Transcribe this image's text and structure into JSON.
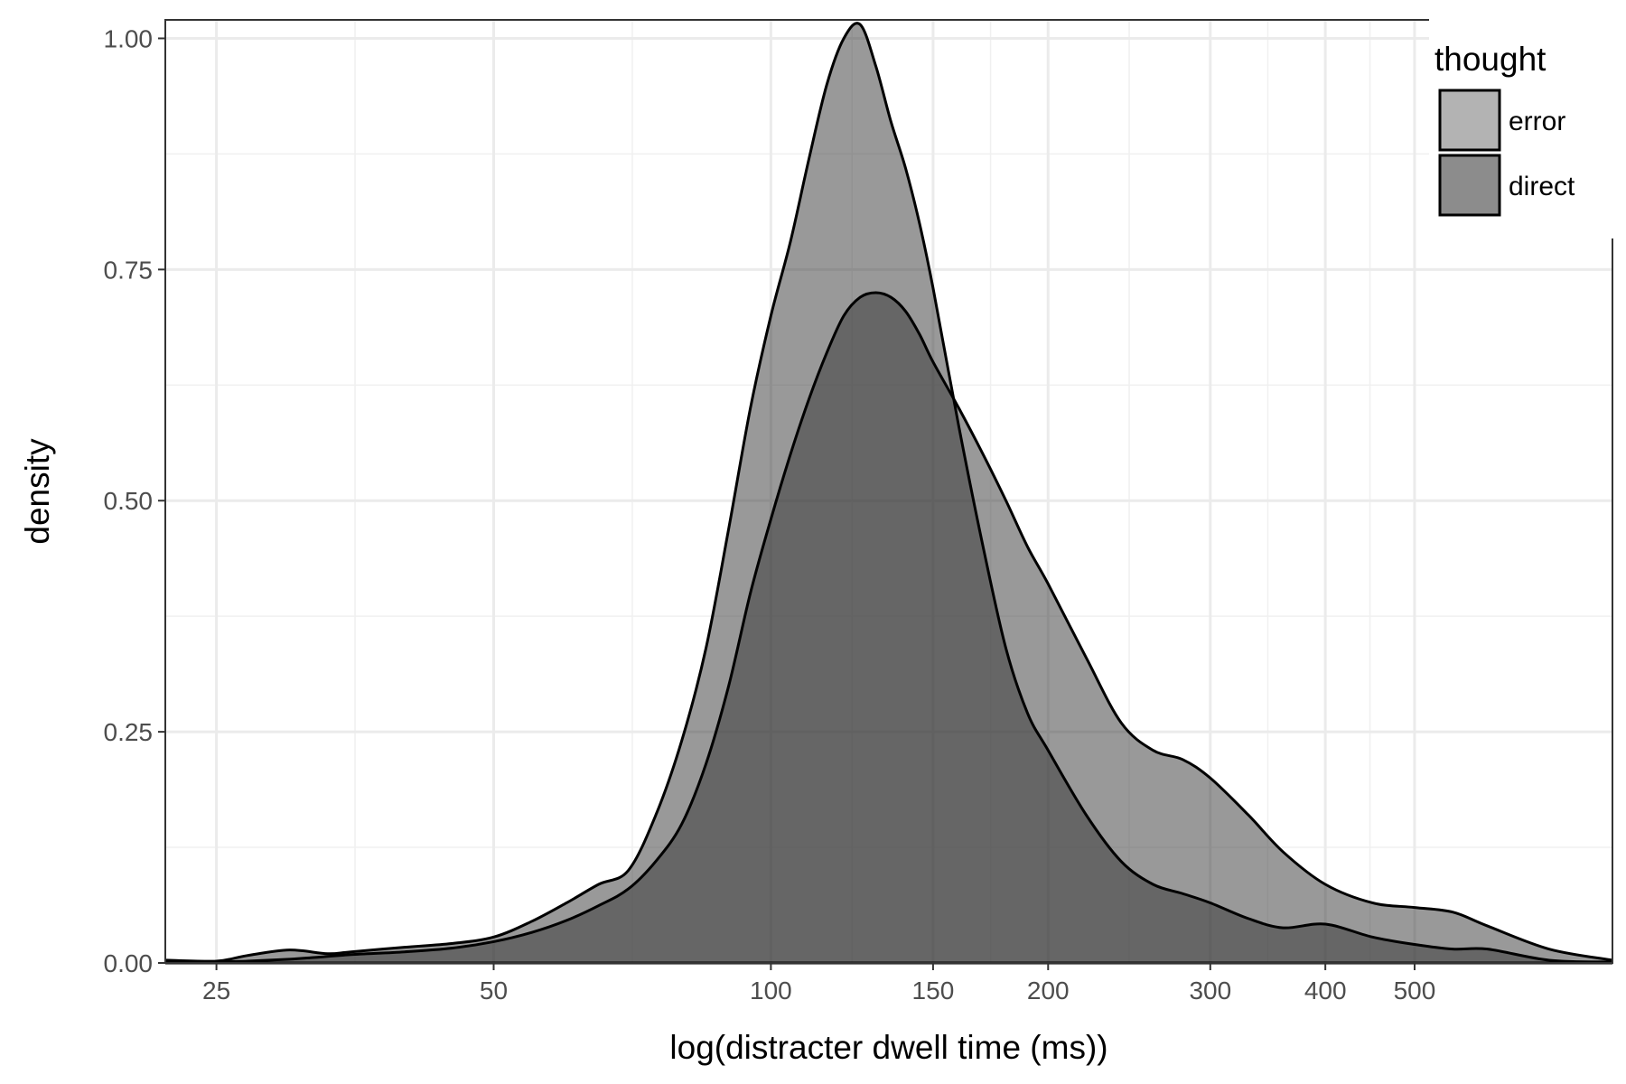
{
  "chart_data": {
    "type": "area",
    "xlabel": "log(distracter dwell time (ms))",
    "ylabel": "density",
    "x_scale": "log",
    "xlim": [
      22,
      820
    ],
    "ylim": [
      0,
      1.02
    ],
    "x_ticks": [
      25,
      50,
      100,
      150,
      200,
      300,
      400,
      500
    ],
    "x_tick_labels": [
      "25",
      "50",
      "100",
      "150",
      "200",
      "300",
      "400",
      "500"
    ],
    "y_ticks": [
      0,
      0.25,
      0.5,
      0.75,
      1.0
    ],
    "y_tick_labels": [
      "0.00",
      "0.25",
      "0.50",
      "0.75",
      "1.00"
    ],
    "grid": true,
    "legend": {
      "title": "thought",
      "position": "top-right"
    },
    "series": [
      {
        "name": "error",
        "color": "#b3b3b3",
        "x": [
          22,
          25,
          27,
          30,
          32,
          35,
          40,
          45,
          50,
          55,
          60,
          65,
          70,
          75,
          80,
          85,
          90,
          95,
          100,
          105,
          110,
          115,
          120,
          125,
          130,
          135,
          140,
          145,
          150,
          160,
          170,
          180,
          190,
          200,
          220,
          240,
          260,
          280,
          300,
          330,
          360,
          400,
          450,
          500,
          550,
          600,
          700,
          820
        ],
        "y": [
          0.001,
          0.001,
          0.002,
          0.004,
          0.006,
          0.009,
          0.012,
          0.016,
          0.023,
          0.033,
          0.046,
          0.062,
          0.08,
          0.11,
          0.15,
          0.215,
          0.3,
          0.4,
          0.48,
          0.55,
          0.61,
          0.66,
          0.7,
          0.72,
          0.725,
          0.72,
          0.705,
          0.68,
          0.65,
          0.6,
          0.55,
          0.5,
          0.45,
          0.41,
          0.33,
          0.26,
          0.23,
          0.22,
          0.2,
          0.16,
          0.12,
          0.085,
          0.065,
          0.06,
          0.055,
          0.04,
          0.015,
          0.003
        ]
      },
      {
        "name": "direct",
        "color": "#8c8c8c",
        "x": [
          22,
          25,
          27,
          30,
          33,
          35,
          40,
          45,
          50,
          55,
          60,
          65,
          70,
          75,
          80,
          85,
          90,
          95,
          100,
          105,
          110,
          115,
          120,
          125,
          130,
          135,
          140,
          145,
          150,
          160,
          170,
          180,
          190,
          200,
          220,
          240,
          260,
          280,
          300,
          330,
          360,
          400,
          450,
          500,
          550,
          600,
          700,
          820
        ],
        "y": [
          0.003,
          0.002,
          0.008,
          0.014,
          0.01,
          0.012,
          0.017,
          0.021,
          0.028,
          0.045,
          0.065,
          0.085,
          0.1,
          0.16,
          0.24,
          0.34,
          0.47,
          0.6,
          0.7,
          0.78,
          0.87,
          0.95,
          1.0,
          1.015,
          0.97,
          0.91,
          0.86,
          0.8,
          0.73,
          0.58,
          0.45,
          0.34,
          0.27,
          0.23,
          0.16,
          0.11,
          0.085,
          0.075,
          0.065,
          0.048,
          0.038,
          0.042,
          0.028,
          0.02,
          0.015,
          0.015,
          0.003,
          0.001
        ]
      }
    ]
  }
}
